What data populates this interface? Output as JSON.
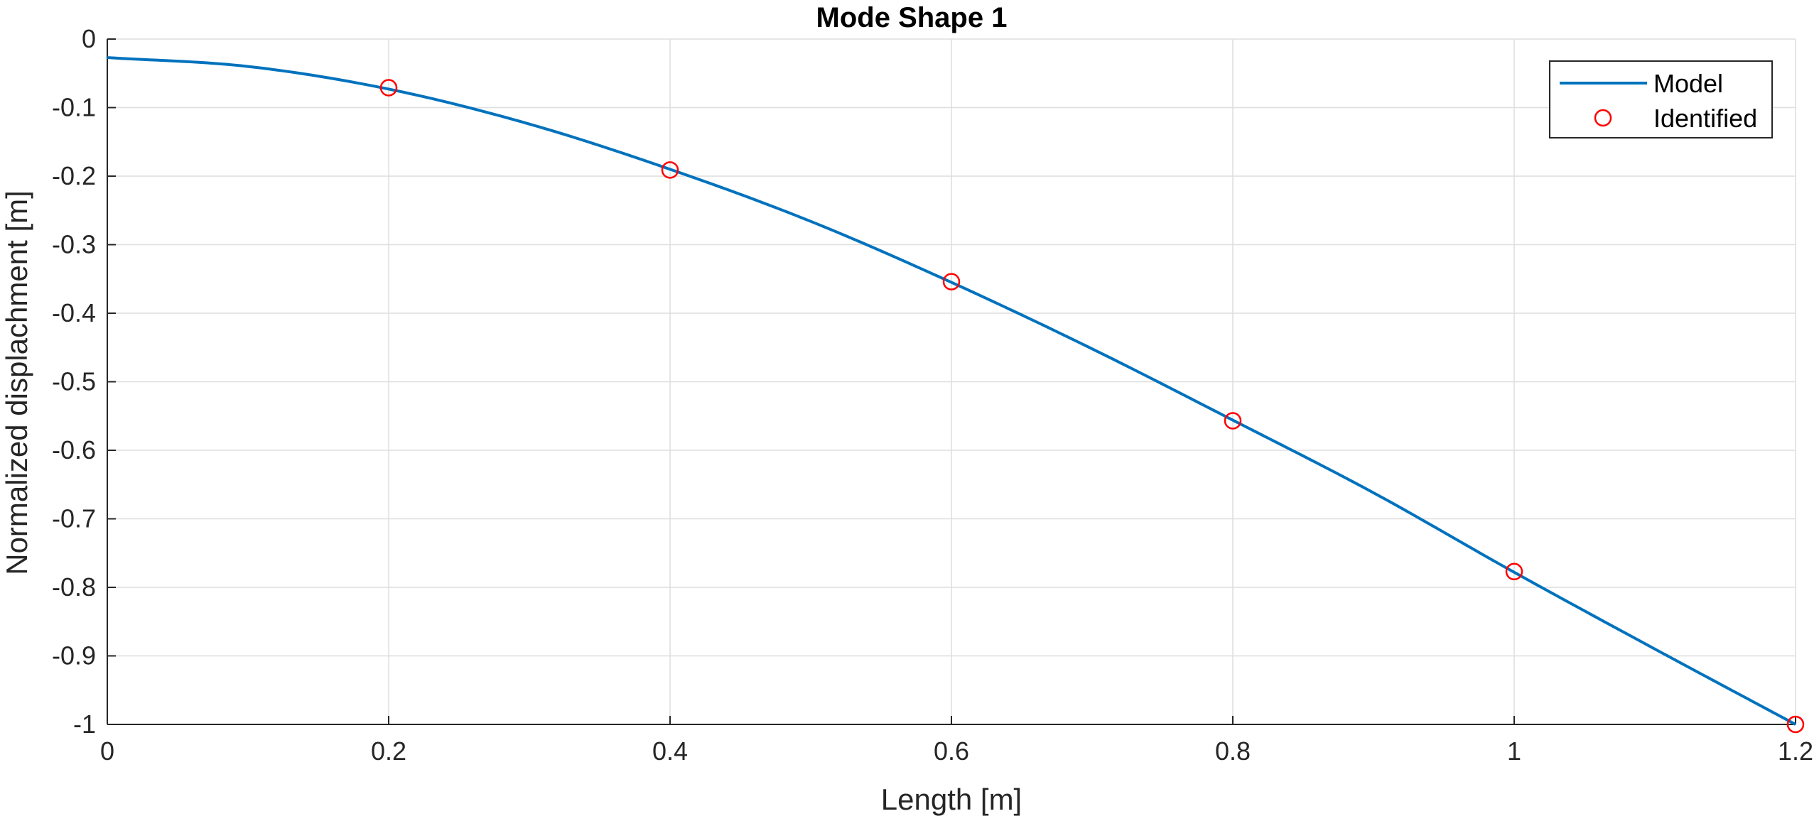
{
  "chart_data": {
    "type": "line",
    "title": "Mode Shape 1",
    "xlabel": "Length [m]",
    "ylabel": "Normalized displachment [m]",
    "xlim": [
      0,
      1.2
    ],
    "ylim": [
      -1,
      0
    ],
    "xticks": [
      "0",
      "0.2",
      "0.4",
      "0.6",
      "0.8",
      "1",
      "1.2"
    ],
    "yticks": [
      "0",
      "-0.1",
      "-0.2",
      "-0.3",
      "-0.4",
      "-0.5",
      "-0.6",
      "-0.7",
      "-0.8",
      "-0.9",
      "-1"
    ],
    "grid": true,
    "legend_position": "top-right",
    "series": [
      {
        "name": "Model",
        "style": "line",
        "color": "#0072BD",
        "x": [
          0,
          0.1,
          0.2,
          0.3,
          0.4,
          0.5,
          0.6,
          0.7,
          0.8,
          0.9,
          1.0,
          1.1,
          1.2
        ],
        "y": [
          -0.027,
          -0.04,
          -0.073,
          -0.124,
          -0.19,
          -0.266,
          -0.355,
          -0.452,
          -0.556,
          -0.662,
          -0.778,
          -0.89,
          -1.0
        ]
      },
      {
        "name": "Identified",
        "style": "marker",
        "marker": "circle",
        "color": "#FF0000",
        "x": [
          0.2,
          0.4,
          0.6,
          0.8,
          1.0,
          1.2
        ],
        "y": [
          -0.071,
          -0.191,
          -0.354,
          -0.557,
          -0.777,
          -1.0
        ]
      }
    ]
  }
}
